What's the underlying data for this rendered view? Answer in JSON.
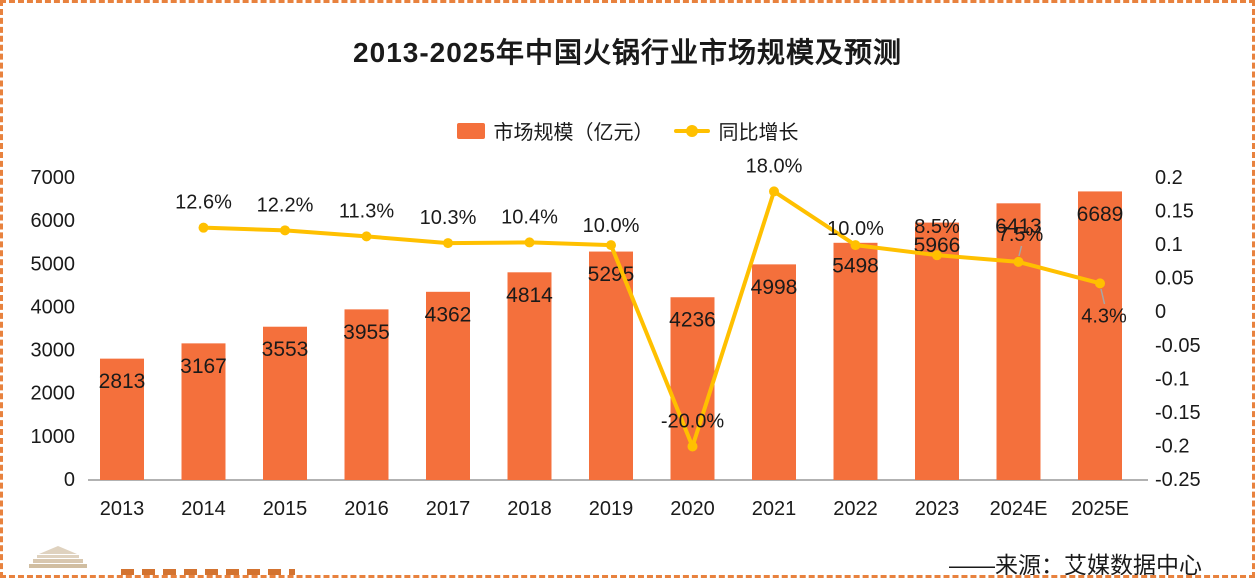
{
  "title": "2013-2025年中国火锅行业市场规模及预测",
  "legend": [
    {
      "label": "市场规模（亿元）",
      "marker": "bar-swatch",
      "color": "#F4703C"
    },
    {
      "label": "同比增长",
      "marker": "line-dot",
      "color": "#FFC000"
    }
  ],
  "footer": {
    "source": "——来源：艾媒数据中心"
  },
  "frame": {
    "border_color": "#E8823E",
    "background": "#FFFFFF",
    "text_color": "#1A1A1A"
  },
  "chart_data": {
    "type": "combo-bar-line",
    "title": "2013-2025年中国火锅行业市场规模及预测",
    "grid": false,
    "legend_position": "top",
    "categories": [
      "2013",
      "2014",
      "2015",
      "2016",
      "2017",
      "2018",
      "2019",
      "2020",
      "2021",
      "2022",
      "2023",
      "2024E",
      "2025E"
    ],
    "series": [
      {
        "name": "市场规模（亿元）",
        "type": "bar",
        "axis": "left",
        "color": "#F4703C",
        "values": [
          2813,
          3167,
          3553,
          3955,
          4362,
          4814,
          5295,
          4236,
          4998,
          5498,
          5966,
          6413,
          6689
        ]
      },
      {
        "name": "同比增长",
        "type": "line",
        "axis": "right",
        "color": "#FFC000",
        "values": [
          null,
          0.126,
          0.122,
          0.113,
          0.103,
          0.104,
          0.1,
          -0.2,
          0.18,
          0.1,
          0.085,
          0.075,
          0.043
        ],
        "labels": [
          null,
          "12.6%",
          "12.2%",
          "11.3%",
          "10.3%",
          "10.4%",
          "10.0%",
          "-20.0%",
          "18.0%",
          "10.0%",
          "8.5%",
          "7.5%",
          "4.3%"
        ],
        "label_overrides": {
          "6": {
            "dy": -19
          },
          "9": {
            "dy": -16
          },
          "10": {
            "dy": -28
          },
          "11": {
            "dx": 2,
            "dy": -27,
            "leader": [
              1016,
              253,
              1018.5,
              243
            ]
          },
          "12": {
            "dx": 4,
            "dy": 33,
            "leader": [
              1098,
              286,
              1101.5,
              301
            ]
          }
        }
      }
    ],
    "left_axis": {
      "min": 0,
      "max": 7000,
      "ticks": [
        {
          "value": 0,
          "label": "0"
        },
        {
          "value": 1000,
          "label": "1000"
        },
        {
          "value": 2000,
          "label": "2000"
        },
        {
          "value": 3000,
          "label": "3000"
        },
        {
          "value": 4000,
          "label": "4000"
        },
        {
          "value": 5000,
          "label": "5000"
        },
        {
          "value": 6000,
          "label": "6000"
        },
        {
          "value": 7000,
          "label": "7000"
        }
      ]
    },
    "right_axis": {
      "min": -0.25,
      "max": 0.2,
      "ticks": [
        {
          "value": 0.2,
          "label": "0.2"
        },
        {
          "value": 0.15,
          "label": "0.15"
        },
        {
          "value": 0.1,
          "label": "0.1"
        },
        {
          "value": 0.05,
          "label": "0.05"
        },
        {
          "value": 0,
          "label": "0"
        },
        {
          "value": -0.05,
          "label": "-0.05"
        },
        {
          "value": -0.1,
          "label": "-0.1"
        },
        {
          "value": -0.15,
          "label": "-0.15"
        },
        {
          "value": -0.2,
          "label": "-0.2"
        },
        {
          "value": -0.25,
          "label": "-0.25"
        }
      ]
    }
  }
}
